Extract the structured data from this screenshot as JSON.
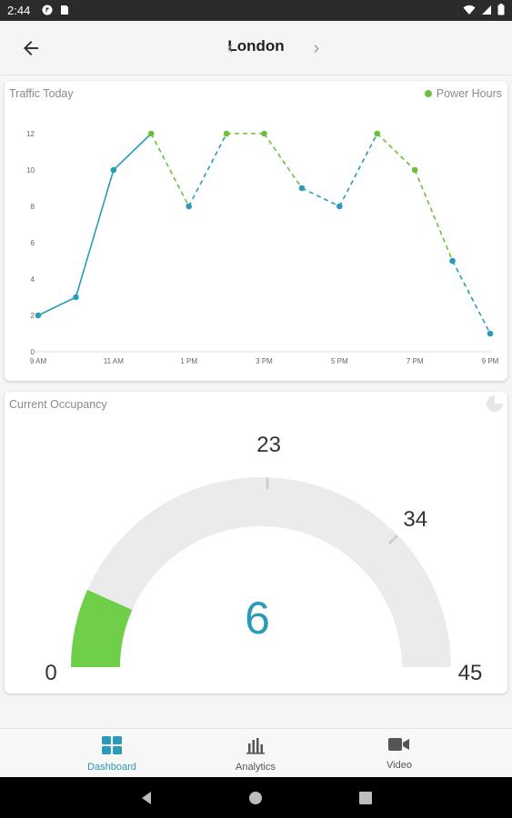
{
  "status_bar": {
    "time": "2:44"
  },
  "app_bar": {
    "city": "London"
  },
  "traffic_card": {
    "title": "Traffic Today",
    "legend_label": "Power Hours",
    "colors": {
      "normal": "#2a9bb8",
      "power": "#6abf3c"
    }
  },
  "chart_data": {
    "type": "line",
    "title": "Traffic Today",
    "x": [
      "9 AM",
      "10 AM",
      "11 AM",
      "12 PM",
      "1 PM",
      "2 PM",
      "3 PM",
      "4 PM",
      "5 PM",
      "6 PM",
      "7 PM",
      "8 PM",
      "9 PM"
    ],
    "values": [
      2,
      3,
      10,
      12,
      8,
      12,
      12,
      9,
      8,
      12,
      10,
      5,
      1
    ],
    "power_hours": [
      false,
      false,
      false,
      true,
      false,
      true,
      true,
      false,
      false,
      true,
      true,
      false,
      false
    ],
    "projected_from_index": 3,
    "x_tick_labels": [
      "9 AM",
      "11 AM",
      "1 PM",
      "3 PM",
      "5 PM",
      "7 PM",
      "9 PM"
    ],
    "y_ticks": [
      0,
      2,
      4,
      6,
      8,
      10,
      12
    ],
    "ylim": [
      0,
      12
    ],
    "legend": [
      "Power Hours"
    ],
    "legend_position": "top-right",
    "grid": false
  },
  "occupancy_card": {
    "title": "Current Occupancy",
    "current": "6",
    "min_label": "0",
    "max_label": "45",
    "marker_labels": [
      "23",
      "34"
    ],
    "value": 6,
    "max": 45,
    "markers": [
      23,
      34
    ],
    "colors": {
      "fill": "#6fcf49",
      "track": "#ebebeb",
      "value_text": "#2a9bb8"
    }
  },
  "bottom_nav": {
    "items": [
      {
        "label": "Dashboard",
        "icon": "dashboard-icon",
        "active": true
      },
      {
        "label": "Analytics",
        "icon": "bar-chart-icon",
        "active": false
      },
      {
        "label": "Video",
        "icon": "video-camera-icon",
        "active": false
      }
    ],
    "colors": {
      "active": "#2a9bb8",
      "inactive": "#555555"
    }
  }
}
